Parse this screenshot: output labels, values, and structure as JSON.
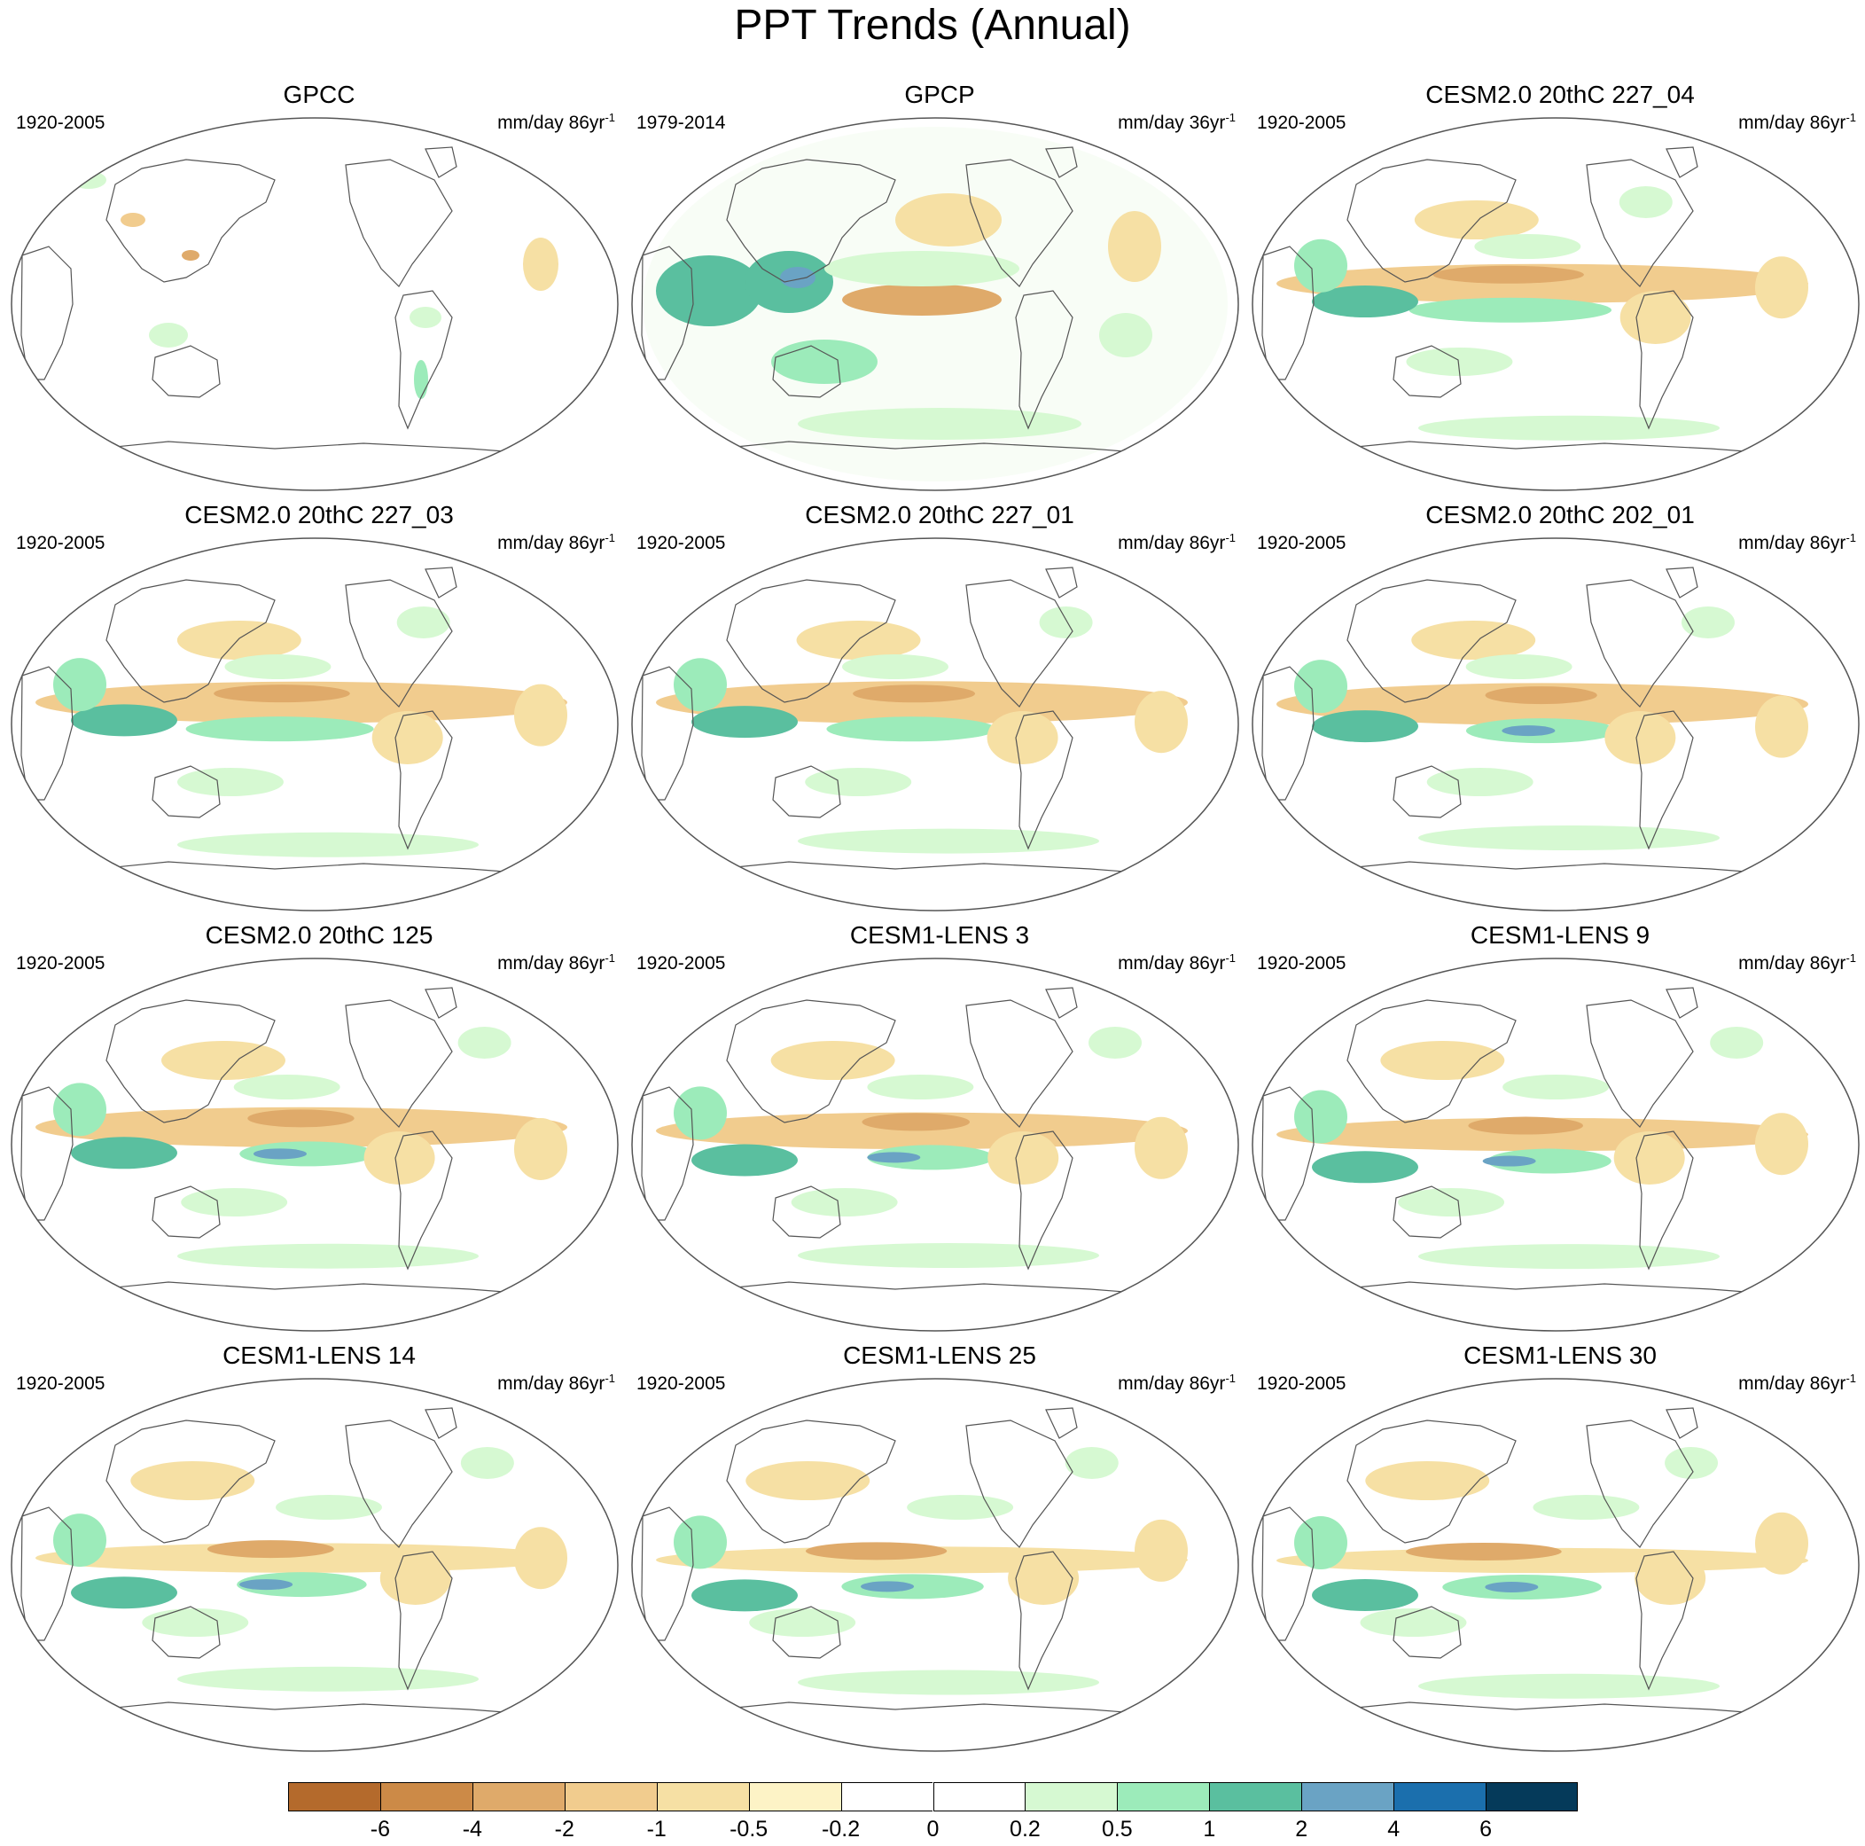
{
  "title": "PPT Trends (Annual)",
  "panels": [
    {
      "title": "GPCC",
      "period": "1920-2005",
      "units": "mm/day 86yr",
      "units_exp": "-1",
      "pattern": "gpcc"
    },
    {
      "title": "GPCP",
      "period": "1979-2014",
      "units": "mm/day 36yr",
      "units_exp": "-1",
      "pattern": "gpcp"
    },
    {
      "title": "CESM2.0 20thC 227_04",
      "period": "1920-2005",
      "units": "mm/day 86yr",
      "units_exp": "-1",
      "pattern": "model"
    },
    {
      "title": "CESM2.0 20thC 227_03",
      "period": "1920-2005",
      "units": "mm/day 86yr",
      "units_exp": "-1",
      "pattern": "model"
    },
    {
      "title": "CESM2.0 20thC 227_01",
      "period": "1920-2005",
      "units": "mm/day 86yr",
      "units_exp": "-1",
      "pattern": "model"
    },
    {
      "title": "CESM2.0 20thC 202_01",
      "period": "1920-2005",
      "units": "mm/day 86yr",
      "units_exp": "-1",
      "pattern": "model"
    },
    {
      "title": "CESM2.0 20thC 125",
      "period": "1920-2005",
      "units": "mm/day 86yr",
      "units_exp": "-1",
      "pattern": "model"
    },
    {
      "title": "CESM1-LENS 3",
      "period": "1920-2005",
      "units": "mm/day 86yr",
      "units_exp": "-1",
      "pattern": "model"
    },
    {
      "title": "CESM1-LENS 9",
      "period": "1920-2005",
      "units": "mm/day 86yr",
      "units_exp": "-1",
      "pattern": "model"
    },
    {
      "title": "CESM1-LENS 14",
      "period": "1920-2005",
      "units": "mm/day 86yr",
      "units_exp": "-1",
      "pattern": "model"
    },
    {
      "title": "CESM1-LENS 25",
      "period": "1920-2005",
      "units": "mm/day 86yr",
      "units_exp": "-1",
      "pattern": "model"
    },
    {
      "title": "CESM1-LENS 30",
      "period": "1920-2005",
      "units": "mm/day 86yr",
      "units_exp": "-1",
      "pattern": "model"
    }
  ],
  "colorbar": {
    "colors": [
      "#b46a2c",
      "#cc8a47",
      "#dfaa6a",
      "#f1cc8e",
      "#f6e0a4",
      "#fdf3c6",
      "#ffffff",
      "#ffffff",
      "#d6f9d2",
      "#9cebba",
      "#5abf9f",
      "#6aa3c4",
      "#1b6fad",
      "#053a5a"
    ],
    "labels": [
      "-6",
      "-4",
      "-2",
      "-1",
      "-0.5",
      "-0.2",
      "0",
      "0.2",
      "0.5",
      "1",
      "2",
      "4",
      "6"
    ]
  }
}
